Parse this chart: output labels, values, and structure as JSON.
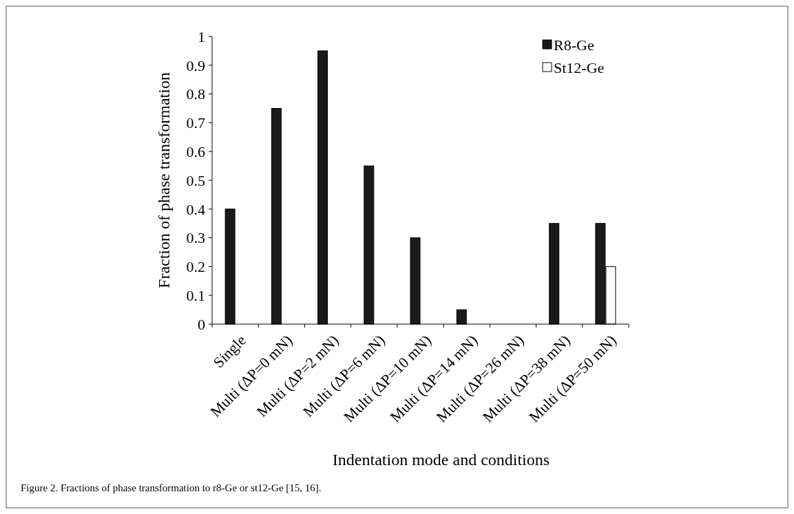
{
  "chart_data": {
    "type": "bar",
    "xlabel": "Indentation mode and conditions",
    "ylabel": "Fraction of phase transformation",
    "categories": [
      "Single",
      "Multi (ΔP=0 mN)",
      "Multi (ΔP=2 mN)",
      "Multi (ΔP=6 mN)",
      "Multi (ΔP=10 mN)",
      "Multi (ΔP=14 mN)",
      "Multi (ΔP=26 mN)",
      "Multi (ΔP=38 mN)",
      "Multi (ΔP=50 mN)"
    ],
    "series": [
      {
        "name": "R8-Ge",
        "color": "#1a1a1a",
        "values": [
          0.4,
          0.75,
          0.95,
          0.55,
          0.3,
          0.05,
          0,
          0.35,
          0.35
        ]
      },
      {
        "name": "St12-Ge",
        "color": "#ffffff",
        "values": [
          0,
          0,
          0,
          0,
          0,
          0,
          0,
          0,
          0.2
        ]
      }
    ],
    "ylim": [
      0,
      1
    ],
    "yticks": [
      0,
      0.1,
      0.2,
      0.3,
      0.4,
      0.5,
      0.6,
      0.7,
      0.8,
      0.9,
      1
    ],
    "grid": false,
    "legend": "top right",
    "annotations": [
      "Figure 2. Fractions of phase transformation to r8-Ge or st12-Ge [15, 16]."
    ]
  }
}
